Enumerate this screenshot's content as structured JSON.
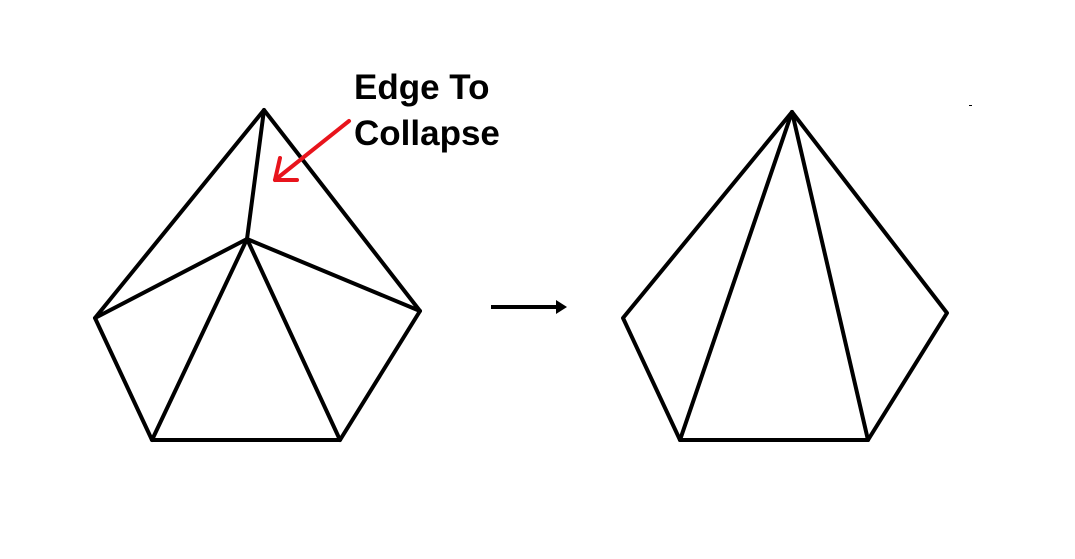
{
  "annotation": {
    "line1": "Edge To",
    "line2": "Collapse"
  },
  "colors": {
    "edge": "#000000",
    "highlight_arrow": "#e8141c",
    "background": "#ffffff"
  },
  "icons": {
    "transition": "right-arrow-icon",
    "pointer": "red-pointer-arrow-icon"
  }
}
